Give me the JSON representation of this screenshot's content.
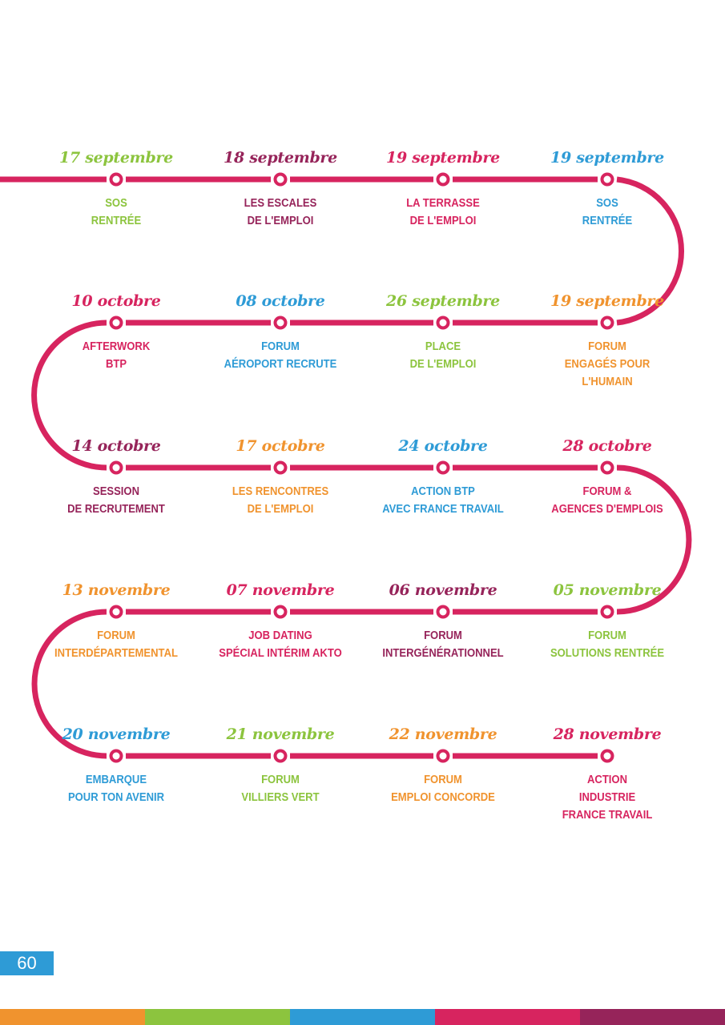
{
  "page_number": "60",
  "colors": {
    "line": "#d7245f",
    "green": "#8cc43e",
    "maroon": "#96245a",
    "pink": "#d7245f",
    "blue": "#2e9bd6",
    "orange": "#f0932e"
  },
  "rows": [
    {
      "events": [
        {
          "date": "17 septembre",
          "color": "green",
          "lines": [
            "SOS",
            "RENTRÉE"
          ]
        },
        {
          "date": "18 septembre",
          "color": "maroon",
          "lines": [
            "LES ESCALES",
            "DE L'EMPLOI"
          ]
        },
        {
          "date": "19 septembre",
          "color": "pink",
          "lines": [
            "LA TERRASSE",
            "DE L'EMPLOI"
          ]
        },
        {
          "date": "19 septembre",
          "color": "blue",
          "lines": [
            "SOS",
            "RENTRÉE"
          ]
        }
      ]
    },
    {
      "events": [
        {
          "date": "10 octobre",
          "color": "pink",
          "lines": [
            "AFTERWORK",
            "BTP"
          ]
        },
        {
          "date": "08 octobre",
          "color": "blue",
          "lines": [
            "FORUM",
            "AÉROPORT RECRUTE"
          ]
        },
        {
          "date": "26 septembre",
          "color": "green",
          "lines": [
            "PLACE",
            "DE L'EMPLOI"
          ]
        },
        {
          "date": "19 septembre",
          "color": "orange",
          "lines": [
            "FORUM",
            "ENGAGÉS POUR",
            "L'HUMAIN"
          ]
        }
      ]
    },
    {
      "events": [
        {
          "date": "14 octobre",
          "color": "maroon",
          "lines": [
            "SESSION",
            "DE RECRUTEMENT"
          ]
        },
        {
          "date": "17 octobre",
          "color": "orange",
          "lines": [
            "LES RENCONTRES",
            "DE L'EMPLOI"
          ]
        },
        {
          "date": "24 octobre",
          "color": "blue",
          "lines": [
            "ACTION BTP",
            "AVEC FRANCE TRAVAIL"
          ]
        },
        {
          "date": "28 octobre",
          "color": "pink",
          "lines": [
            "FORUM &",
            "AGENCES D'EMPLOIS"
          ]
        }
      ]
    },
    {
      "events": [
        {
          "date": "13 novembre",
          "color": "orange",
          "lines": [
            "FORUM",
            "INTERDÉPARTEMENTAL"
          ]
        },
        {
          "date": "07 novembre",
          "color": "pink",
          "lines": [
            "JOB DATING",
            "SPÉCIAL INTÉRIM AKTO"
          ]
        },
        {
          "date": "06 novembre",
          "color": "maroon",
          "lines": [
            "FORUM",
            "INTERGÉNÉRATIONNEL"
          ]
        },
        {
          "date": "05 novembre",
          "color": "green",
          "lines": [
            "FORUM",
            "SOLUTIONS RENTRÉE"
          ]
        }
      ]
    },
    {
      "events": [
        {
          "date": "20 novembre",
          "color": "blue",
          "lines": [
            "EMBARQUE",
            "POUR TON AVENIR"
          ]
        },
        {
          "date": "21 novembre",
          "color": "green",
          "lines": [
            "FORUM",
            "VILLIERS VERT"
          ]
        },
        {
          "date": "22 novembre",
          "color": "orange",
          "lines": [
            "FORUM",
            "EMPLOI CONCORDE"
          ]
        },
        {
          "date": "28 novembre",
          "color": "pink",
          "lines": [
            "ACTION",
            "INDUSTRIE",
            "FRANCE TRAVAIL"
          ]
        }
      ]
    }
  ],
  "footer_colors": [
    "#f0932e",
    "#8cc43e",
    "#2e9bd6",
    "#d7245f",
    "#96245a"
  ]
}
